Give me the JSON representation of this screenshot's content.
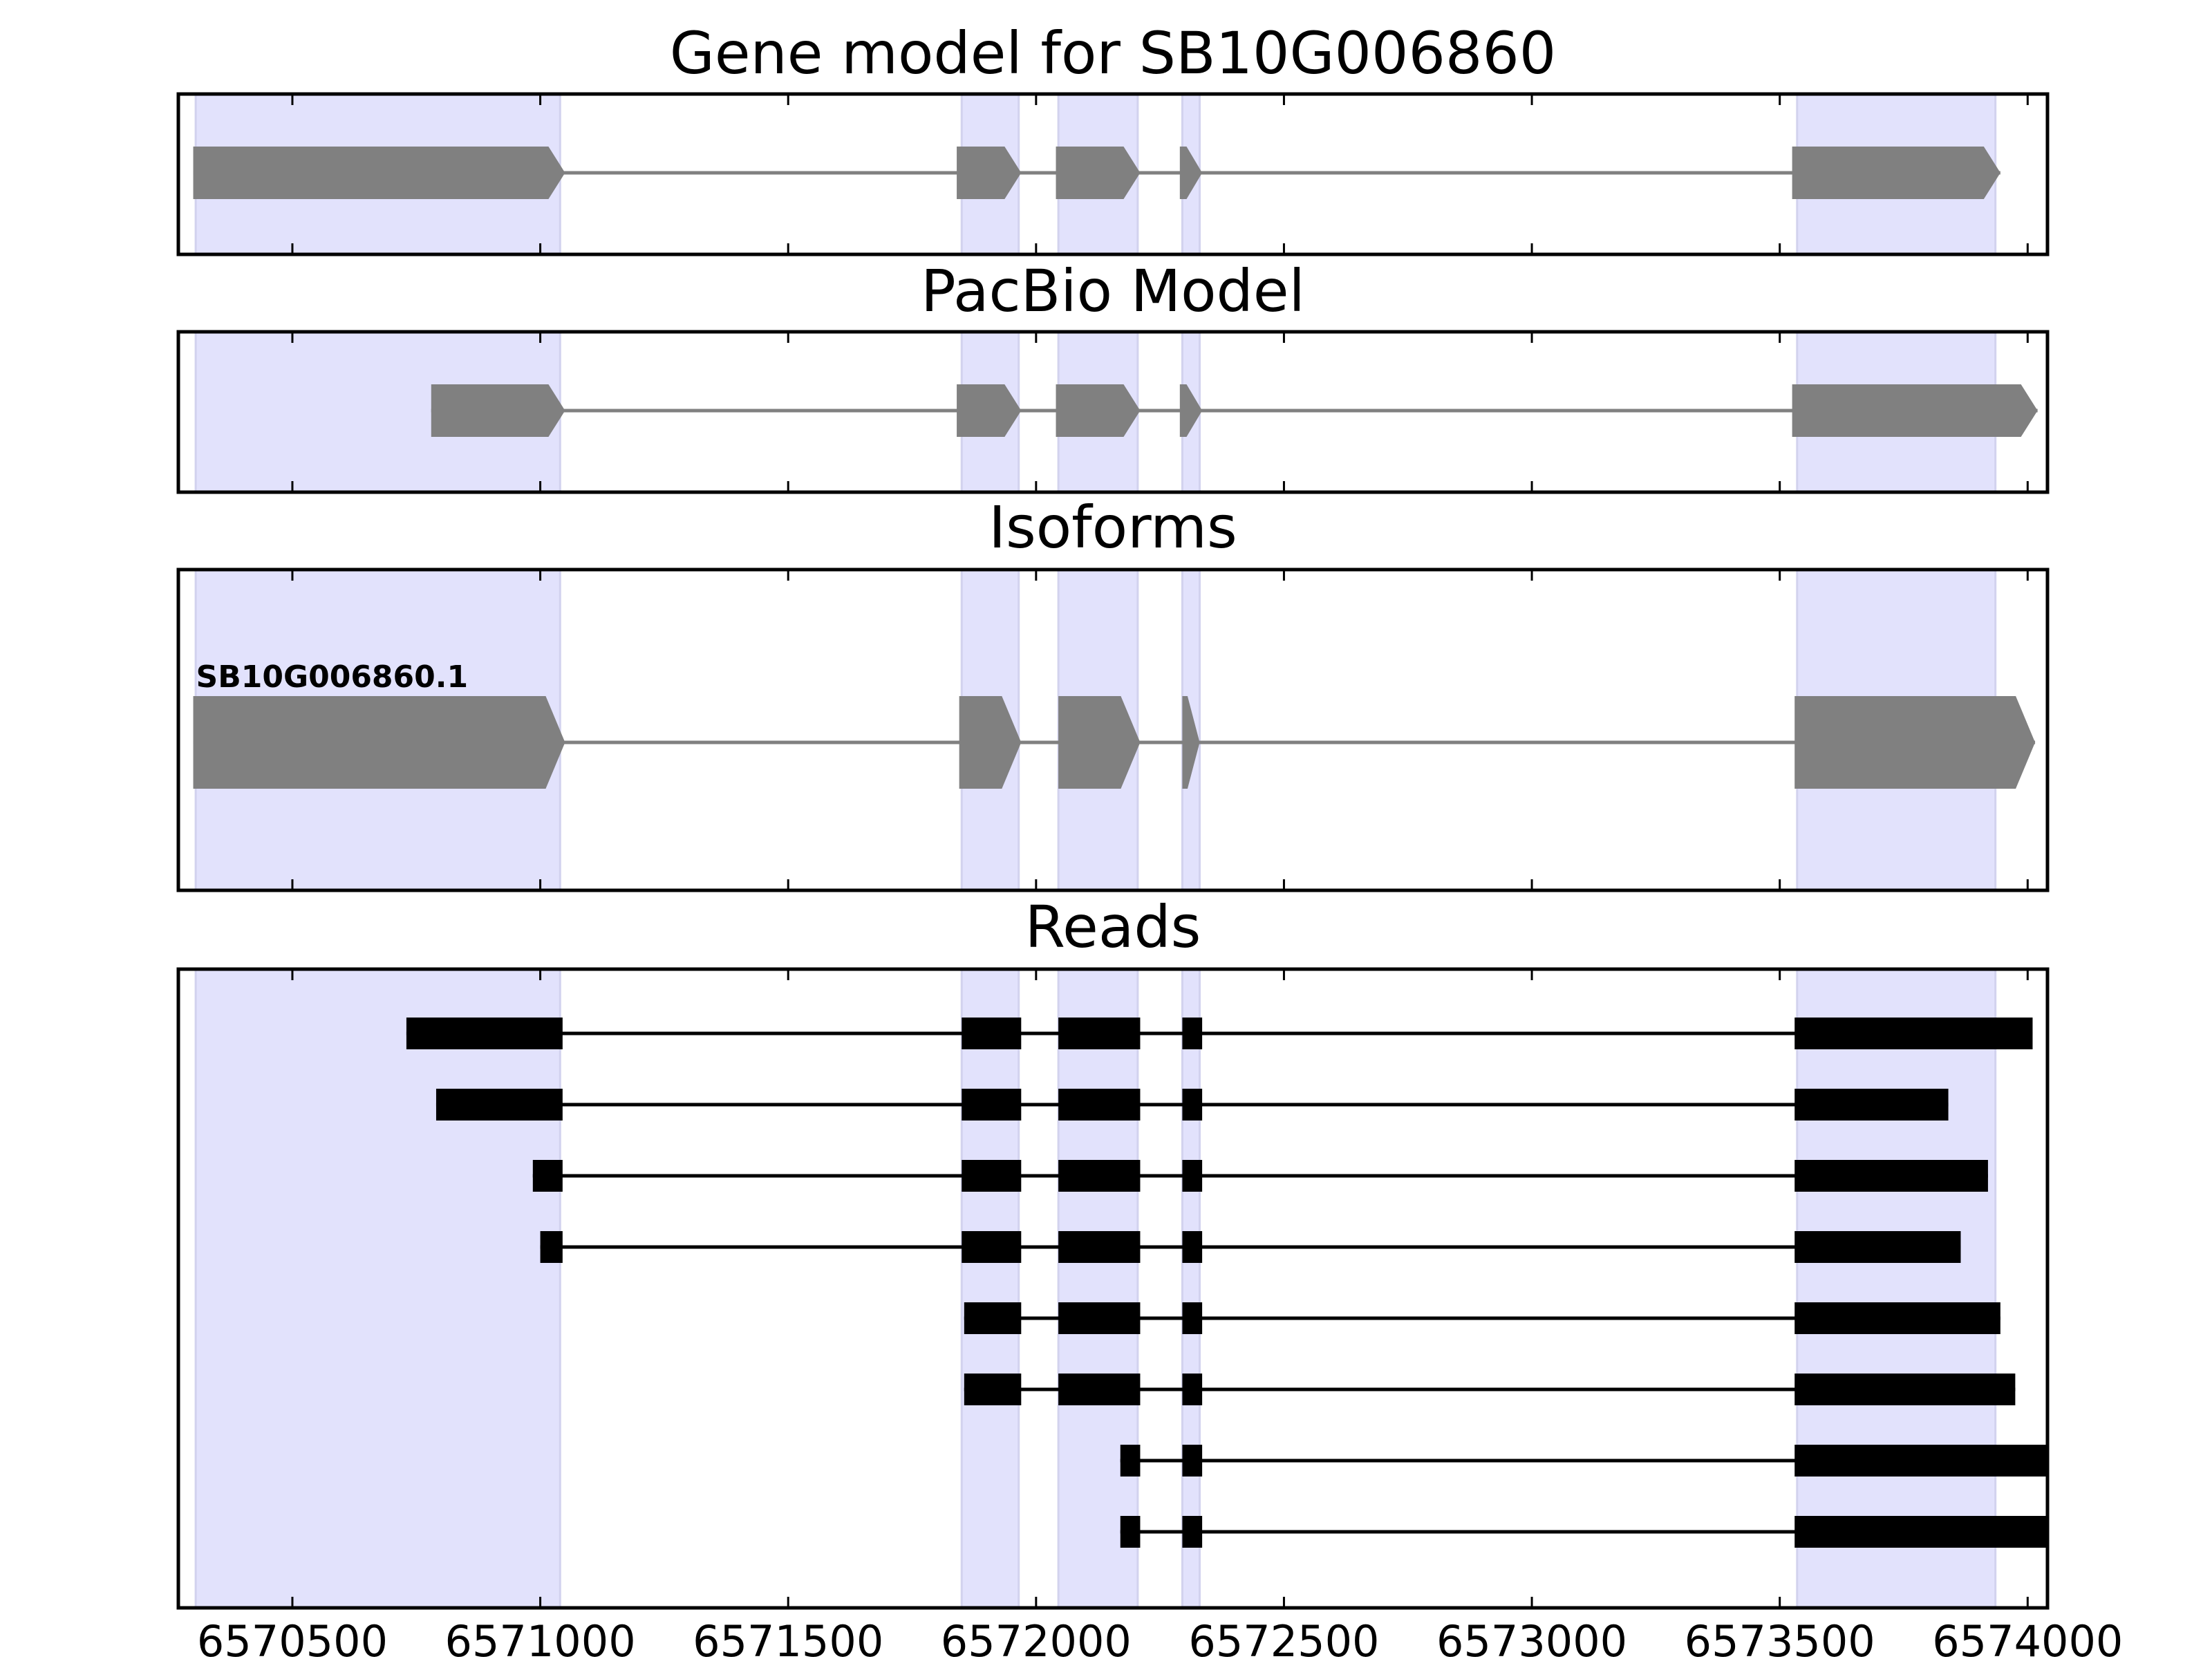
{
  "chart_data": {
    "type": "gene-structure",
    "title": "Gene model for SB10G006860",
    "x_range": [
      6570270,
      6574040
    ],
    "x_ticks": [
      6570500,
      6571000,
      6571500,
      6572000,
      6572500,
      6573000,
      6573500,
      6574000
    ],
    "x_tick_labels": [
      "6570500",
      "6571000",
      "6571500",
      "6572000",
      "6572500",
      "6573000",
      "6573500",
      "6574000"
    ],
    "highlight_color": "#e2e2fc",
    "gene_color": "#808080",
    "read_color": "#000000",
    "exon_highlights": [
      [
        6570305,
        6571040
      ],
      [
        6571850,
        6571965
      ],
      [
        6572045,
        6572205
      ],
      [
        6572295,
        6572330
      ],
      [
        6573535,
        6573935
      ]
    ],
    "panels": [
      {
        "title": "Gene model for SB10G006860",
        "models": [
          {
            "label": "",
            "exons": [
              [
                6570300,
                6571050
              ],
              [
                6571840,
                6571970
              ],
              [
                6572040,
                6572210
              ],
              [
                6572290,
                6572335
              ],
              [
                6573525,
                6573945
              ]
            ]
          }
        ]
      },
      {
        "title": "PacBio Model",
        "models": [
          {
            "label": "",
            "exons": [
              [
                6570780,
                6571050
              ],
              [
                6571840,
                6571970
              ],
              [
                6572040,
                6572210
              ],
              [
                6572290,
                6572335
              ],
              [
                6573525,
                6574020
              ]
            ]
          }
        ]
      },
      {
        "title": "Isoforms",
        "models": [
          {
            "label": "SB10G006860.1",
            "exons": [
              [
                6570300,
                6571050
              ],
              [
                6571845,
                6571970
              ],
              [
                6572045,
                6572210
              ],
              [
                6572295,
                6572330
              ],
              [
                6573530,
                6574015
              ]
            ]
          }
        ]
      },
      {
        "title": "Reads",
        "reads": [
          [
            [
              6570730,
              6571045
            ],
            [
              6571850,
              6571970
            ],
            [
              6572045,
              6572210
            ],
            [
              6572295,
              6572335
            ],
            [
              6573530,
              6574010
            ]
          ],
          [
            [
              6570790,
              6571045
            ],
            [
              6571850,
              6571970
            ],
            [
              6572045,
              6572210
            ],
            [
              6572295,
              6572335
            ],
            [
              6573530,
              6573840
            ]
          ],
          [
            [
              6570985,
              6571045
            ],
            [
              6571850,
              6571970
            ],
            [
              6572045,
              6572210
            ],
            [
              6572295,
              6572335
            ],
            [
              6573530,
              6573920
            ]
          ],
          [
            [
              6571000,
              6571045
            ],
            [
              6571850,
              6571970
            ],
            [
              6572045,
              6572210
            ],
            [
              6572295,
              6572335
            ],
            [
              6573530,
              6573865
            ]
          ],
          [
            [
              6571855,
              6571970
            ],
            [
              6572045,
              6572210
            ],
            [
              6572295,
              6572335
            ],
            [
              6573530,
              6573945
            ]
          ],
          [
            [
              6571855,
              6571970
            ],
            [
              6572045,
              6572210
            ],
            [
              6572295,
              6572335
            ],
            [
              6573530,
              6573975
            ]
          ],
          [
            [
              6572170,
              6572210
            ],
            [
              6572295,
              6572335
            ],
            [
              6573530,
              6574040
            ]
          ],
          [
            [
              6572170,
              6572210
            ],
            [
              6572295,
              6572335
            ],
            [
              6573530,
              6574040
            ]
          ]
        ]
      }
    ]
  }
}
